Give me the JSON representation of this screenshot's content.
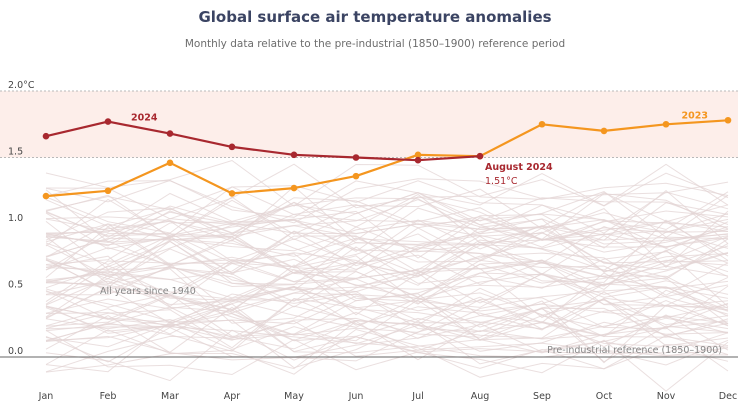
{
  "title": "Global surface air temperature anomalies",
  "subtitle": "Monthly data relative to the pre-industrial (1850–1900) reference period",
  "chart_data": {
    "type": "line",
    "categories": [
      "Jan",
      "Feb",
      "Mar",
      "Apr",
      "May",
      "Jun",
      "Jul",
      "Aug",
      "Sep",
      "Oct",
      "Nov",
      "Dec"
    ],
    "ylim": [
      -0.2,
      2.0
    ],
    "yticks": [
      {
        "value": 2.0,
        "label": "2.0°C"
      },
      {
        "value": 1.5,
        "label": "1.5"
      },
      {
        "value": 1.0,
        "label": "1.0"
      },
      {
        "value": 0.5,
        "label": "0.5"
      },
      {
        "value": 0.0,
        "label": "0.0"
      }
    ],
    "highlight_band": [
      1.5,
      2.0
    ],
    "series": [
      {
        "name": "2024",
        "color": "#a8282f",
        "values": [
          1.66,
          1.77,
          1.68,
          1.58,
          1.52,
          1.5,
          1.48,
          1.51,
          null,
          null,
          null,
          null
        ]
      },
      {
        "name": "2023",
        "color": "#f4961f",
        "values": [
          1.21,
          1.25,
          1.46,
          1.23,
          1.27,
          1.36,
          1.52,
          1.51,
          1.75,
          1.7,
          1.75,
          1.78
        ]
      }
    ],
    "background_label": "All years since 1940",
    "reference_label": "Pre-industrial reference (1850–1900)",
    "callout": {
      "title": "August 2024",
      "value": "1.51°C"
    },
    "grid": true,
    "background_color": "#e3d4d4",
    "band_color": "#fdeeea"
  }
}
